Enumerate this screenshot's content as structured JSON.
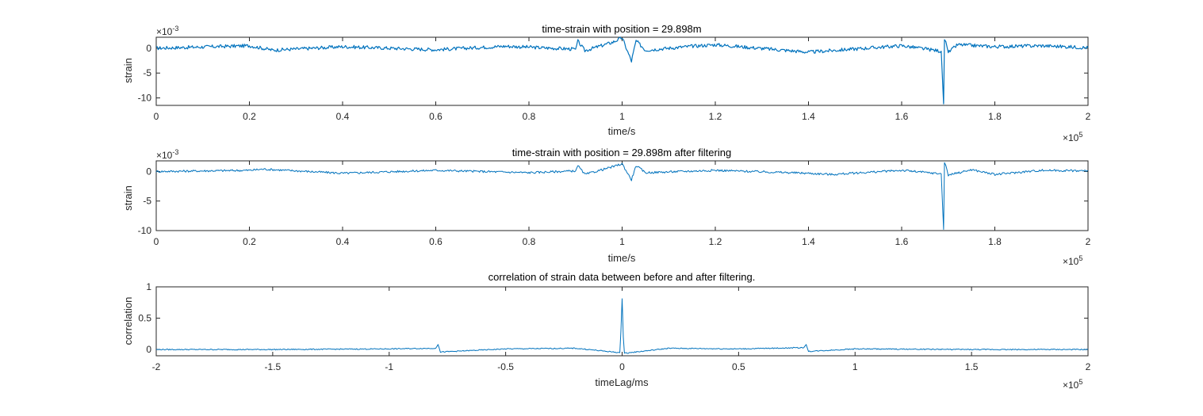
{
  "chart_data": [
    {
      "type": "line",
      "title": "time-strain with position = 29.898m",
      "xlabel": "time/s",
      "ylabel": "strain",
      "x_exponent": "×10",
      "x_exponent_power": "5",
      "y_exponent": "×10",
      "y_exponent_power": "-3",
      "xlim": [
        0,
        2
      ],
      "ylim": [
        -11.5,
        2.2
      ],
      "xticks": [
        "0",
        "0.2",
        "0.4",
        "0.6",
        "0.8",
        "1",
        "1.2",
        "1.4",
        "1.6",
        "1.8",
        "2"
      ],
      "yticks": [
        "0",
        "-5",
        "-10"
      ],
      "ytick_values": [
        0,
        -5,
        -10
      ],
      "grid": false,
      "line_color": "#0072bd",
      "series": [
        {
          "x": [
            0,
            0.2,
            0.25,
            0.4,
            0.6,
            0.75,
            0.9,
            0.905,
            0.92,
            0.98,
            1.0,
            1.02,
            1.03,
            1.05,
            1.15,
            1.2,
            1.4,
            1.6,
            1.685,
            1.69,
            1.692,
            1.695,
            1.7,
            1.72,
            1.8,
            1.9,
            2.0
          ],
          "y": [
            0,
            0.5,
            -0.4,
            0.3,
            -0.3,
            0.4,
            -0.2,
            1.4,
            -0.5,
            1.2,
            2.1,
            -2.6,
            1.5,
            -0.4,
            0.4,
            0.7,
            -0.8,
            0.5,
            -0.6,
            -11.2,
            1.7,
            1.3,
            -0.9,
            0.7,
            0.3,
            0.5,
            0.1
          ]
        }
      ]
    },
    {
      "type": "line",
      "title": "time-strain with position = 29.898m after filtering",
      "xlabel": "time/s",
      "ylabel": "strain",
      "x_exponent": "×10",
      "x_exponent_power": "5",
      "y_exponent": "×10",
      "y_exponent_power": "-3",
      "xlim": [
        0,
        2
      ],
      "ylim": [
        -10,
        1.8
      ],
      "xticks": [
        "0",
        "0.2",
        "0.4",
        "0.6",
        "0.8",
        "1",
        "1.2",
        "1.4",
        "1.6",
        "1.8",
        "2"
      ],
      "yticks": [
        "0",
        "-5",
        "-10"
      ],
      "ytick_values": [
        0,
        -5,
        -10
      ],
      "grid": false,
      "line_color": "#0072bd",
      "series": [
        {
          "x": [
            0,
            0.2,
            0.23,
            0.4,
            0.6,
            0.8,
            0.9,
            0.905,
            0.92,
            0.98,
            1.0,
            1.02,
            1.03,
            1.05,
            1.2,
            1.4,
            1.45,
            1.6,
            1.685,
            1.69,
            1.692,
            1.695,
            1.7,
            1.75,
            1.8,
            1.9,
            2.0
          ],
          "y": [
            0,
            0.2,
            0.4,
            -0.3,
            0.2,
            -0.2,
            0.1,
            1.0,
            -0.5,
            0.8,
            1.3,
            -1.4,
            1.0,
            -0.2,
            0.2,
            -0.3,
            -0.5,
            0.2,
            -0.4,
            -9.8,
            1.5,
            1.0,
            -0.6,
            0.3,
            -0.5,
            0.2,
            0.1
          ]
        }
      ]
    },
    {
      "type": "line",
      "title": "correlation of strain data between before and after filtering.",
      "xlabel": "timeLag/ms",
      "ylabel": "correlation",
      "x_exponent": "×10",
      "x_exponent_power": "5",
      "xlim": [
        -2,
        2
      ],
      "ylim": [
        -0.1,
        1
      ],
      "xticks": [
        "-2",
        "-1.5",
        "-1",
        "-0.5",
        "0",
        "0.5",
        "1",
        "1.5",
        "2"
      ],
      "yticks": [
        "1",
        "0.5",
        "0"
      ],
      "ytick_values": [
        1,
        0.5,
        0
      ],
      "grid": false,
      "line_color": "#0072bd",
      "series": [
        {
          "x": [
            -2,
            -1.5,
            -1,
            -0.8,
            -0.79,
            -0.78,
            -0.5,
            -0.2,
            -0.01,
            -0.005,
            0,
            0.005,
            0.01,
            0.2,
            0.5,
            0.78,
            0.79,
            0.8,
            1,
            1.5,
            2
          ],
          "y": [
            0,
            0,
            0.01,
            0.02,
            0.08,
            -0.04,
            0.01,
            0.02,
            -0.05,
            0.3,
            0.81,
            0.2,
            -0.06,
            0.02,
            0.01,
            0.03,
            0.08,
            -0.03,
            0.01,
            0,
            0
          ]
        }
      ]
    }
  ]
}
